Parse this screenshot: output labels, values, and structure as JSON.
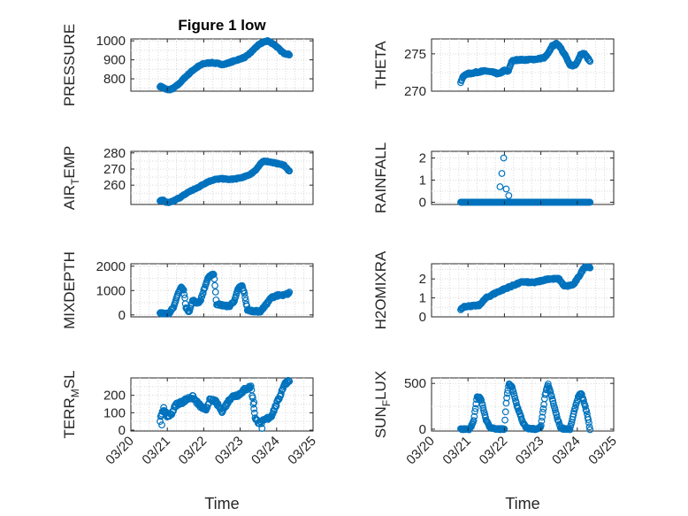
{
  "figure": {
    "title": "Figure 1 low",
    "background": "#ffffff"
  },
  "style": {
    "marker_color": "#0072BD",
    "axis_color": "#262626"
  },
  "chart_data": [
    {
      "id": "pressure",
      "type": "scatter",
      "title": "Figure 1 low",
      "ylabel": {
        "main": "PRESSURE",
        "sub": "",
        "rest": ""
      },
      "xlabel": "",
      "ylim": [
        735,
        1010
      ],
      "yticks": [
        800,
        900,
        1000
      ],
      "ytick_labels": [
        "800",
        "900",
        "1000"
      ],
      "xlim": [
        0,
        5
      ],
      "xticks": [
        0,
        1,
        2,
        3,
        4,
        5
      ],
      "xtick_labels": [],
      "grid": true,
      "trend": [
        [
          0.8,
          760
        ],
        [
          0.88,
          755
        ],
        [
          0.95,
          745
        ],
        [
          1.05,
          743
        ],
        [
          1.15,
          748
        ],
        [
          1.3,
          770
        ],
        [
          1.5,
          810
        ],
        [
          1.7,
          845
        ],
        [
          1.85,
          865
        ],
        [
          2.0,
          880
        ],
        [
          2.2,
          885
        ],
        [
          2.4,
          880
        ],
        [
          2.55,
          875
        ],
        [
          2.7,
          885
        ],
        [
          2.85,
          895
        ],
        [
          3.0,
          905
        ],
        [
          3.15,
          915
        ],
        [
          3.3,
          940
        ],
        [
          3.45,
          970
        ],
        [
          3.6,
          990
        ],
        [
          3.75,
          1000
        ],
        [
          3.9,
          985
        ],
        [
          4.0,
          970
        ],
        [
          4.1,
          950
        ],
        [
          4.2,
          935
        ],
        [
          4.3,
          930
        ],
        [
          4.35,
          928
        ]
      ],
      "noise": 3,
      "count": 220
    },
    {
      "id": "theta",
      "type": "scatter",
      "title": "",
      "ylabel": {
        "main": "THETA",
        "sub": "",
        "rest": ""
      },
      "xlabel": "",
      "ylim": [
        270,
        277
      ],
      "yticks": [
        270,
        275
      ],
      "ytick_labels": [
        "270",
        "275"
      ],
      "xlim": [
        0,
        5
      ],
      "xticks": [
        0,
        1,
        2,
        3,
        4,
        5
      ],
      "xtick_labels": [],
      "grid": true,
      "trend": [
        [
          0.8,
          271.2
        ],
        [
          0.85,
          271.8
        ],
        [
          0.95,
          272.3
        ],
        [
          1.1,
          272.4
        ],
        [
          1.3,
          272.6
        ],
        [
          1.5,
          272.7
        ],
        [
          1.7,
          272.5
        ],
        [
          1.85,
          272.3
        ],
        [
          2.0,
          272.8
        ],
        [
          2.1,
          272.6
        ],
        [
          2.2,
          274
        ],
        [
          2.35,
          274.2
        ],
        [
          2.6,
          274.2
        ],
        [
          2.9,
          274.3
        ],
        [
          3.1,
          274.5
        ],
        [
          3.2,
          275
        ],
        [
          3.3,
          276
        ],
        [
          3.45,
          276.4
        ],
        [
          3.55,
          275.8
        ],
        [
          3.7,
          274.5
        ],
        [
          3.8,
          273.4
        ],
        [
          3.95,
          273.5
        ],
        [
          4.1,
          275
        ],
        [
          4.2,
          275
        ],
        [
          4.35,
          274
        ]
      ],
      "noise": 0.1,
      "count": 220
    },
    {
      "id": "airtemp",
      "type": "scatter",
      "title": "",
      "ylabel": {
        "main": "AIR",
        "sub": "T",
        "rest": "EMP"
      },
      "xlabel": "",
      "ylim": [
        248,
        281
      ],
      "yticks": [
        260,
        270,
        280
      ],
      "ytick_labels": [
        "260",
        "270",
        "280"
      ],
      "xlim": [
        0,
        5
      ],
      "xticks": [
        0,
        1,
        2,
        3,
        4,
        5
      ],
      "xtick_labels": [],
      "grid": true,
      "trend": [
        [
          0.8,
          250.5
        ],
        [
          0.9,
          250.5
        ],
        [
          0.95,
          249.5
        ],
        [
          1.05,
          249
        ],
        [
          1.2,
          250.5
        ],
        [
          1.4,
          253
        ],
        [
          1.6,
          256
        ],
        [
          1.8,
          258
        ],
        [
          1.95,
          260
        ],
        [
          2.1,
          262
        ],
        [
          2.3,
          263.5
        ],
        [
          2.5,
          264
        ],
        [
          2.7,
          263.5
        ],
        [
          2.9,
          264
        ],
        [
          3.1,
          265
        ],
        [
          3.3,
          267
        ],
        [
          3.45,
          270
        ],
        [
          3.55,
          273
        ],
        [
          3.65,
          275
        ],
        [
          3.8,
          274.5
        ],
        [
          4.0,
          273.5
        ],
        [
          4.2,
          272.5
        ],
        [
          4.35,
          268.5
        ]
      ],
      "noise": 0.3,
      "count": 220
    },
    {
      "id": "rainfall",
      "type": "scatter",
      "title": "",
      "ylabel": {
        "main": "RAINFALL",
        "sub": "",
        "rest": ""
      },
      "xlabel": "",
      "ylim": [
        -0.1,
        2.3
      ],
      "yticks": [
        0,
        1,
        2
      ],
      "ytick_labels": [
        "0",
        "1",
        "2"
      ],
      "xlim": [
        0,
        5
      ],
      "xticks": [
        0,
        1,
        2,
        3,
        4,
        5
      ],
      "xtick_labels": [],
      "grid": true,
      "trend": [
        [
          0.8,
          0
        ],
        [
          4.35,
          0
        ]
      ],
      "noise": 0,
      "count": 200,
      "extra_points": [
        [
          1.88,
          0.7
        ],
        [
          1.93,
          1.3
        ],
        [
          1.98,
          2.0
        ],
        [
          2.05,
          0.6
        ],
        [
          2.12,
          0.3
        ]
      ]
    },
    {
      "id": "mixdepth",
      "type": "scatter",
      "title": "",
      "ylabel": {
        "main": "MIXDEPTH",
        "sub": "",
        "rest": ""
      },
      "xlabel": "",
      "ylim": [
        -80,
        2100
      ],
      "yticks": [
        0,
        1000,
        2000
      ],
      "ytick_labels": [
        "0",
        "1000",
        "2000"
      ],
      "xlim": [
        0,
        5
      ],
      "xticks": [
        0,
        1,
        2,
        3,
        4,
        5
      ],
      "xtick_labels": [],
      "grid": true,
      "trend": [
        [
          0.8,
          100
        ],
        [
          0.95,
          30
        ],
        [
          1.05,
          80
        ],
        [
          1.2,
          400
        ],
        [
          1.3,
          900
        ],
        [
          1.38,
          1150
        ],
        [
          1.45,
          1000
        ],
        [
          1.52,
          250
        ],
        [
          1.6,
          150
        ],
        [
          1.7,
          600
        ],
        [
          1.8,
          500
        ],
        [
          1.9,
          550
        ],
        [
          2.0,
          1000
        ],
        [
          2.1,
          1450
        ],
        [
          2.2,
          1650
        ],
        [
          2.28,
          1680
        ],
        [
          2.35,
          450
        ],
        [
          2.5,
          400
        ],
        [
          2.7,
          350
        ],
        [
          2.85,
          600
        ],
        [
          2.95,
          1100
        ],
        [
          3.05,
          1200
        ],
        [
          3.12,
          850
        ],
        [
          3.2,
          200
        ],
        [
          3.35,
          160
        ],
        [
          3.55,
          140
        ],
        [
          3.7,
          400
        ],
        [
          3.85,
          700
        ],
        [
          4.0,
          800
        ],
        [
          4.2,
          800
        ],
        [
          4.35,
          900
        ]
      ],
      "noise": 40,
      "count": 220
    },
    {
      "id": "h2omixra",
      "type": "scatter",
      "title": "",
      "ylabel": {
        "main": "H2OMIXRA",
        "sub": "",
        "rest": ""
      },
      "xlabel": "",
      "ylim": [
        0,
        2.8
      ],
      "yticks": [
        0,
        1,
        2
      ],
      "ytick_labels": [
        "0",
        "1",
        "2"
      ],
      "xlim": [
        0,
        5
      ],
      "xticks": [
        0,
        1,
        2,
        3,
        4,
        5
      ],
      "xtick_labels": [],
      "grid": true,
      "trend": [
        [
          0.8,
          0.4
        ],
        [
          0.9,
          0.55
        ],
        [
          1.3,
          0.6
        ],
        [
          1.5,
          1.0
        ],
        [
          1.8,
          1.3
        ],
        [
          2.1,
          1.55
        ],
        [
          2.5,
          1.85
        ],
        [
          2.8,
          1.8
        ],
        [
          3.0,
          1.9
        ],
        [
          3.2,
          2.0
        ],
        [
          3.5,
          2.0
        ],
        [
          3.65,
          1.6
        ],
        [
          3.9,
          1.7
        ],
        [
          4.1,
          2.3
        ],
        [
          4.2,
          2.65
        ],
        [
          4.35,
          2.6
        ]
      ],
      "noise": 0.04,
      "count": 220
    },
    {
      "id": "terrmsl",
      "type": "scatter",
      "title": "",
      "ylabel": {
        "main": "TERR",
        "sub": "M",
        "rest": "SL"
      },
      "xlabel": "Time",
      "ylim": [
        -5,
        300
      ],
      "yticks": [
        0,
        100,
        200
      ],
      "ytick_labels": [
        "0",
        "100",
        "200"
      ],
      "xlim": [
        0,
        5
      ],
      "xticks": [
        0,
        1,
        2,
        3,
        4,
        5
      ],
      "xtick_labels": [
        "03/20",
        "03/21",
        "03/22",
        "03/23",
        "03/24",
        "03/25"
      ],
      "grid": true,
      "trend": [
        [
          0.8,
          60
        ],
        [
          0.9,
          120
        ],
        [
          1.0,
          80
        ],
        [
          1.1,
          90
        ],
        [
          1.25,
          150
        ],
        [
          1.4,
          160
        ],
        [
          1.55,
          180
        ],
        [
          1.7,
          190
        ],
        [
          1.85,
          150
        ],
        [
          1.95,
          130
        ],
        [
          2.05,
          110
        ],
        [
          2.15,
          170
        ],
        [
          2.3,
          170
        ],
        [
          2.5,
          110
        ],
        [
          2.6,
          140
        ],
        [
          2.75,
          190
        ],
        [
          2.9,
          200
        ],
        [
          3.0,
          210
        ],
        [
          3.1,
          230
        ],
        [
          3.2,
          240
        ],
        [
          3.3,
          250
        ],
        [
          3.42,
          60
        ],
        [
          3.55,
          40
        ],
        [
          3.7,
          60
        ],
        [
          3.85,
          80
        ],
        [
          4.0,
          150
        ],
        [
          4.1,
          200
        ],
        [
          4.2,
          260
        ],
        [
          4.35,
          290
        ]
      ],
      "noise": 10,
      "count": 220,
      "extra_points": [
        [
          0.85,
          30
        ],
        [
          0.9,
          130
        ],
        [
          3.38,
          160
        ],
        [
          3.6,
          10
        ]
      ]
    },
    {
      "id": "sunflux",
      "type": "scatter",
      "title": "",
      "ylabel": {
        "main": "SUN",
        "sub": "F",
        "rest": "LUX"
      },
      "xlabel": "Time",
      "ylim": [
        -20,
        560
      ],
      "yticks": [
        0,
        500
      ],
      "ytick_labels": [
        "0",
        "500"
      ],
      "xlim": [
        0,
        5
      ],
      "xticks": [
        0,
        1,
        2,
        3,
        4,
        5
      ],
      "xtick_labels": [
        "03/20",
        "03/21",
        "03/22",
        "03/23",
        "03/24",
        "03/25"
      ],
      "grid": true,
      "trend": [
        [
          0.8,
          0
        ],
        [
          1.05,
          0
        ],
        [
          1.15,
          80
        ],
        [
          1.25,
          350
        ],
        [
          1.35,
          340
        ],
        [
          1.5,
          100
        ],
        [
          1.6,
          20
        ],
        [
          1.8,
          0
        ],
        [
          2.0,
          0
        ],
        [
          2.05,
          300
        ],
        [
          2.12,
          490
        ],
        [
          2.2,
          470
        ],
        [
          2.35,
          250
        ],
        [
          2.5,
          80
        ],
        [
          2.6,
          10
        ],
        [
          2.9,
          0
        ],
        [
          3.0,
          20
        ],
        [
          3.12,
          380
        ],
        [
          3.2,
          490
        ],
        [
          3.3,
          350
        ],
        [
          3.45,
          120
        ],
        [
          3.55,
          10
        ],
        [
          3.8,
          0
        ],
        [
          3.95,
          250
        ],
        [
          4.05,
          380
        ],
        [
          4.12,
          380
        ],
        [
          4.25,
          200
        ],
        [
          4.35,
          0
        ]
      ],
      "noise": 8,
      "count": 220
    }
  ]
}
